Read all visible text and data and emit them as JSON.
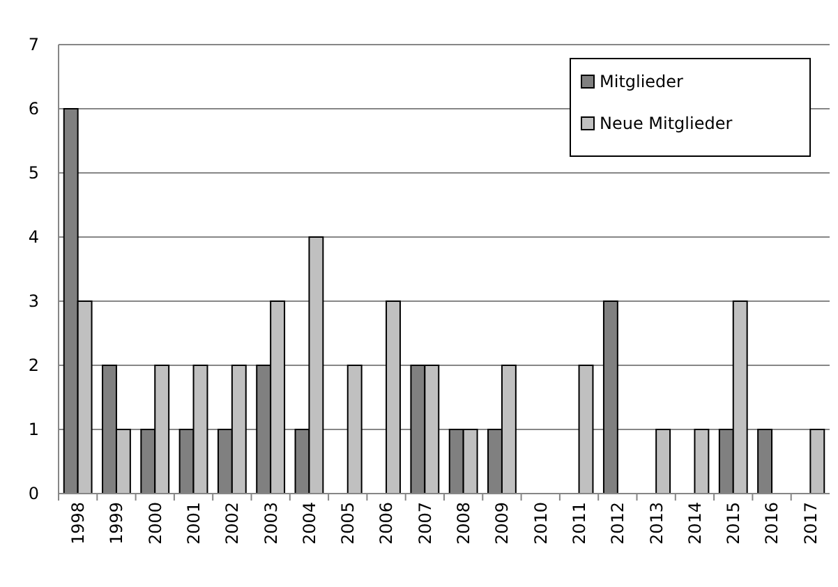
{
  "chart_data": {
    "type": "bar",
    "categories": [
      "1998",
      "1999",
      "2000",
      "2001",
      "2002",
      "2003",
      "2004",
      "2005",
      "2006",
      "2007",
      "2008",
      "2009",
      "2010",
      "2011",
      "2012",
      "2013",
      "2014",
      "2015",
      "2016",
      "2017"
    ],
    "series": [
      {
        "name": "Mitglieder",
        "color": "#808080",
        "values": [
          6,
          2,
          1,
          1,
          1,
          2,
          1,
          0,
          0,
          2,
          1,
          1,
          0,
          0,
          3,
          0,
          0,
          1,
          1,
          0
        ]
      },
      {
        "name": "Neue Mitglieder",
        "color": "#c0c0c0",
        "values": [
          3,
          1,
          2,
          2,
          2,
          3,
          4,
          2,
          3,
          2,
          1,
          2,
          0,
          2,
          0,
          1,
          1,
          3,
          0,
          1
        ]
      }
    ],
    "ylim": [
      0,
      7
    ],
    "yticks": [
      0,
      1,
      2,
      3,
      4,
      5,
      6,
      7
    ],
    "grid": "y",
    "legend": "top right"
  }
}
